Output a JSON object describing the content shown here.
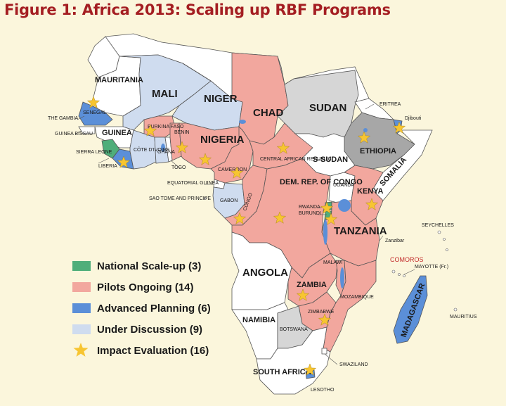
{
  "title": "Figure 1: Africa 2013: Scaling up RBF Programs",
  "colors": {
    "national": "#4fae7a",
    "pilots": "#f2a79e",
    "advanced": "#5b8fd8",
    "discussion": "#cfdcef",
    "none_white": "#ffffff",
    "none_grey": "#d6d6d6",
    "ethiopia_grey": "#a7a7a7",
    "star": "#f7c531",
    "ocean": "#fbf6dc"
  },
  "legend": [
    {
      "label": "National Scale-up (3)",
      "color": "#4fae7a",
      "icon": "swatch"
    },
    {
      "label": "Pilots Ongoing (14)",
      "color": "#f2a79e",
      "icon": "swatch"
    },
    {
      "label": "Advanced Planning (6)",
      "color": "#5b8fd8",
      "icon": "swatch"
    },
    {
      "label": "Under Discussion  (9)",
      "color": "#cfdcef",
      "icon": "swatch"
    },
    {
      "label": "Impact Evaluation (16)",
      "color": "#f7c531",
      "icon": "star-icon"
    }
  ],
  "labels": {
    "mauritania": "MAURITANIA",
    "mali": "MALI",
    "niger": "NIGER",
    "chad": "CHAD",
    "sudan": "SUDAN",
    "eritrea": "ERITREA",
    "djibouti": "Djibouti",
    "the_gambia": "THE GAMBIA",
    "senegal": "SENEGAL",
    "guinea_bissau": "GUINEA BISSAU",
    "guinea": "GUINEA",
    "sierra_leone": "SIERRA LEONE",
    "liberia": "LIBERIA",
    "cote_divoire": "CÔTE D'IVOIRE",
    "ghana": "GHANA",
    "togo": "TOGO",
    "burkina_faso": "BURKINA FASO",
    "benin": "BENIN",
    "nigeria": "NIGERIA",
    "cameroon": "CAMEROON",
    "equatorial_guinea": "EQUATORIAL GUINEA",
    "sao_tome": "SAO TOME AND PRINCIPE",
    "car": "CENTRAL AFRICAN REPUBLIC",
    "s_sudan": "S-SUDAN",
    "ethiopia": "ETHIOPIA",
    "somalia": "SOMALIA",
    "gabon": "GABON",
    "congo": "CONGO",
    "drc": "DEM. REP. OF CONGO",
    "uganda": "UGANDA",
    "kenya": "KENYA",
    "rwanda": "RWANDA",
    "burundi": "BURUNDI",
    "tanzania": "TANZANIA",
    "seychelles": "SEYCHELLES",
    "zanzibar": "Zanzibar",
    "comoros": "COMOROS",
    "mayotte": "MAYOTTE (Fr.)",
    "malawi": "MALAWI",
    "angola": "ANGOLA",
    "zambia": "ZAMBIA",
    "mozambique": "MOZAMBIQUE",
    "madagascar": "MADAGASCAR",
    "mauritius": "MAURITIUS",
    "zimbabwe": "ZIMBABWE",
    "namibia": "NAMIBIA",
    "botswana": "BOTSWANA",
    "swaziland": "SWAZILAND",
    "south_africa": "SOUTH AFRICA",
    "lesotho": "LESOTHO"
  }
}
